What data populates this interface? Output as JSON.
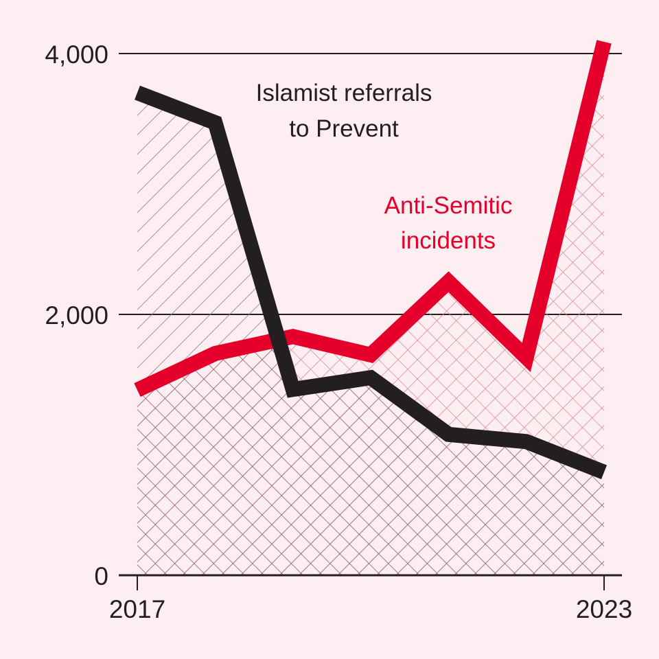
{
  "chart_data": {
    "type": "line",
    "title": "",
    "xlabel": "",
    "ylabel": "",
    "x": [
      2017,
      2018,
      2019,
      2020,
      2021,
      2022,
      2023
    ],
    "x_tick_labels": [
      "2017",
      "2023"
    ],
    "y_ticks": [
      0,
      2000,
      4000
    ],
    "y_tick_labels": [
      "0",
      "2,000",
      "4,000"
    ],
    "ylim": [
      0,
      4000
    ],
    "grid": true,
    "legend": "inline-annotations",
    "series": [
      {
        "name": "Islamist referrals to Prevent",
        "label_lines": [
          "Islamist referrals",
          "to Prevent"
        ],
        "color": "#231f20",
        "fill_pattern": "diagonal-hatch",
        "values": [
          3700,
          3470,
          1425,
          1515,
          1080,
          1025,
          790
        ]
      },
      {
        "name": "Anti-Semitic incidents",
        "label_lines": [
          "Anti-Semitic",
          "incidents"
        ],
        "color": "#e4002b",
        "fill_pattern": "cross-hatch",
        "values": [
          1420,
          1700,
          1830,
          1690,
          2250,
          1670,
          4090
        ]
      }
    ]
  },
  "colors": {
    "background": "#fdeef1",
    "axis": "#231f20",
    "black_series": "#231f20",
    "red_series": "#e4002b"
  }
}
